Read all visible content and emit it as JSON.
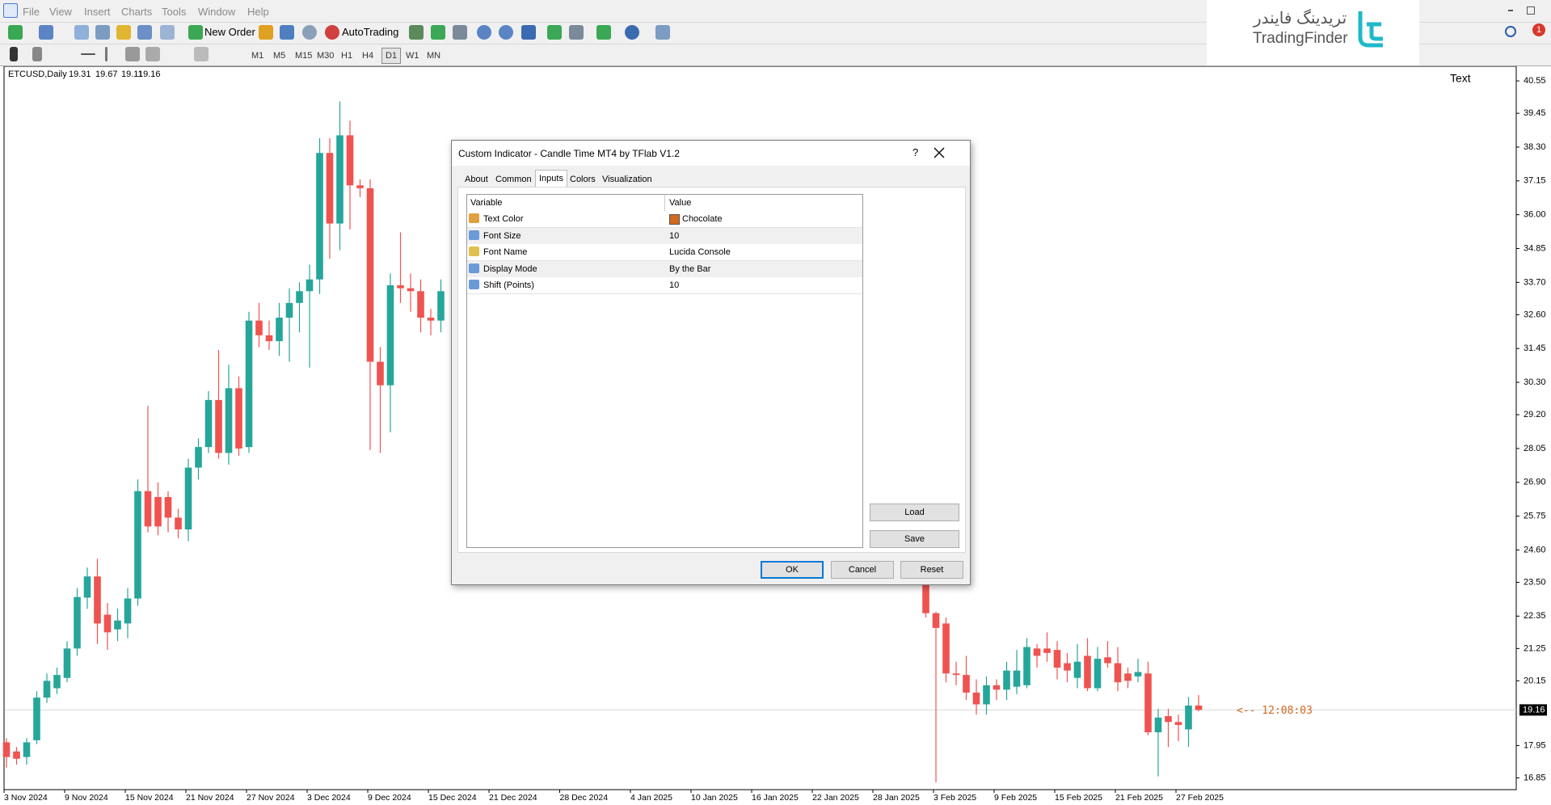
{
  "menu": [
    "File",
    "View",
    "Insert",
    "Charts",
    "Tools",
    "Window",
    "Help"
  ],
  "toolbar": {
    "new_order": "New Order",
    "autotrading": "AutoTrading",
    "timeframes": [
      "M1",
      "M5",
      "M15",
      "M30",
      "H1",
      "H4",
      "D1",
      "W1",
      "MN"
    ],
    "active_timeframe": "D1"
  },
  "logo": {
    "persian": "تریدینگ فایندر",
    "latin": "TradingFinder"
  },
  "notification_count": 1,
  "chart_data": {
    "type": "candlestick",
    "symbol": "ETCUSD,Daily",
    "ohlc": [
      19.31,
      19.67,
      19.11,
      19.16
    ],
    "annotation": "Text",
    "time_label": "<-- 12:08:03",
    "time_label_color": "#d2691e",
    "current_price": 19.16,
    "up_color": "#26a69a",
    "down_color": "#ef5350",
    "x": [
      "3 Nov 2024",
      "4 Nov 2024",
      "5 Nov 2024",
      "6 Nov 2024",
      "7 Nov 2024",
      "8 Nov 2024",
      "9 Nov 2024",
      "10 Nov 2024",
      "11 Nov 2024",
      "12 Nov 2024",
      "13 Nov 2024",
      "14 Nov 2024",
      "15 Nov 2024",
      "16 Nov 2024",
      "17 Nov 2024",
      "18 Nov 2024",
      "19 Nov 2024",
      "20 Nov 2024",
      "21 Nov 2024",
      "22 Nov 2024",
      "23 Nov 2024",
      "24 Nov 2024",
      "25 Nov 2024",
      "26 Nov 2024",
      "27 Nov 2024",
      "28 Nov 2024",
      "29 Nov 2024",
      "30 Nov 2024",
      "1 Dec 2024",
      "2 Dec 2024",
      "3 Dec 2024",
      "4 Dec 2024",
      "5 Dec 2024",
      "6 Dec 2024",
      "7 Dec 2024",
      "8 Dec 2024",
      "9 Dec 2024",
      "10 Dec 2024",
      "11 Dec 2024",
      "12 Dec 2024",
      "13 Dec 2024",
      "14 Dec 2024",
      "15 Dec 2024",
      "16 Dec 2024",
      "2 Feb 2025",
      "3 Feb 2025",
      "4 Feb 2025",
      "5 Feb 2025",
      "6 Feb 2025",
      "7 Feb 2025",
      "8 Feb 2025",
      "9 Feb 2025",
      "10 Feb 2025",
      "11 Feb 2025",
      "12 Feb 2025",
      "13 Feb 2025",
      "14 Feb 2025",
      "15 Feb 2025",
      "16 Feb 2025",
      "17 Feb 2025",
      "18 Feb 2025",
      "19 Feb 2025",
      "20 Feb 2025",
      "21 Feb 2025",
      "22 Feb 2025",
      "23 Feb 2025",
      "24 Feb 2025",
      "25 Feb 2025",
      "26 Feb 2025",
      "27 Feb 2025",
      "28 Feb 2025",
      "1 Mar 2025"
    ],
    "open": [
      18.06,
      17.75,
      17.56,
      18.13,
      19.58,
      19.9,
      20.25,
      21.25,
      22.98,
      23.7,
      22.4,
      21.9,
      22.1,
      22.95,
      26.6,
      26.4,
      26.4,
      25.7,
      25.3,
      27.4,
      28.1,
      29.7,
      27.9,
      30.1,
      28.1,
      32.4,
      31.9,
      31.7,
      32.5,
      33.0,
      33.4,
      33.8,
      38.1,
      35.7,
      38.7,
      37.0,
      36.9,
      31.0,
      30.2,
      33.6,
      33.5,
      33.4,
      32.5,
      32.4,
      23.45,
      22.45,
      22.1,
      20.4,
      20.35,
      19.75,
      19.35,
      20.0,
      19.85,
      19.95,
      20.0,
      21.25,
      21.25,
      21.2,
      20.75,
      20.25,
      21.0,
      19.9,
      20.95,
      20.75,
      20.4,
      20.3,
      20.4,
      18.4,
      18.95,
      18.75,
      18.5,
      19.31
    ],
    "high": [
      18.2,
      17.9,
      18.2,
      19.8,
      20.4,
      20.6,
      21.5,
      23.3,
      24.0,
      24.3,
      22.8,
      22.6,
      23.3,
      27.0,
      29.5,
      26.9,
      26.6,
      26.0,
      27.7,
      28.4,
      30.0,
      31.4,
      30.9,
      30.5,
      32.7,
      33.0,
      32.4,
      33.0,
      33.5,
      33.7,
      34.3,
      38.6,
      38.6,
      39.85,
      39.2,
      37.2,
      37.2,
      31.5,
      34.0,
      35.4,
      34.0,
      33.8,
      32.8,
      33.8,
      23.5,
      22.5,
      22.3,
      20.8,
      21.0,
      20.2,
      20.3,
      20.2,
      20.8,
      21.2,
      21.6,
      21.4,
      21.8,
      21.5,
      21.1,
      21.4,
      21.6,
      21.3,
      21.5,
      21.3,
      20.6,
      20.9,
      20.8,
      19.2,
      19.2,
      19.0,
      19.6,
      19.67
    ],
    "low": [
      17.2,
      17.3,
      17.3,
      18.0,
      19.4,
      19.7,
      20.1,
      21.0,
      22.6,
      21.4,
      21.2,
      21.5,
      21.6,
      22.7,
      25.2,
      25.1,
      25.2,
      25.0,
      24.9,
      27.0,
      27.9,
      27.7,
      27.5,
      27.8,
      27.9,
      31.5,
      31.4,
      31.2,
      31.0,
      32.0,
      30.8,
      33.3,
      34.5,
      34.8,
      35.5,
      36.6,
      28.0,
      27.9,
      28.6,
      33.0,
      32.7,
      32.0,
      31.9,
      32.0,
      22.3,
      16.7,
      20.1,
      20.0,
      19.5,
      19.0,
      19.0,
      19.5,
      19.5,
      19.7,
      19.9,
      20.6,
      20.8,
      20.2,
      20.1,
      19.9,
      19.8,
      19.8,
      20.6,
      19.8,
      19.9,
      20.1,
      18.3,
      16.9,
      17.9,
      18.1,
      17.9,
      19.11
    ],
    "close": [
      17.56,
      17.5,
      18.06,
      19.58,
      20.15,
      20.35,
      21.25,
      23.0,
      23.7,
      22.1,
      21.8,
      22.2,
      22.95,
      26.6,
      25.4,
      25.4,
      25.7,
      25.3,
      27.4,
      28.1,
      29.7,
      27.9,
      30.1,
      28.05,
      32.4,
      31.9,
      31.7,
      32.5,
      33.0,
      33.4,
      33.8,
      38.1,
      35.7,
      38.7,
      37.0,
      36.9,
      31.0,
      30.2,
      33.6,
      33.5,
      33.4,
      32.5,
      32.4,
      33.4,
      22.45,
      21.95,
      20.4,
      20.35,
      19.75,
      19.35,
      20.0,
      19.85,
      20.5,
      20.5,
      21.3,
      21.0,
      21.1,
      20.6,
      20.5,
      20.8,
      19.9,
      20.9,
      20.75,
      20.1,
      20.15,
      20.45,
      18.4,
      18.9,
      18.75,
      18.65,
      19.31,
      19.16
    ],
    "ylim": [
      16.45,
      41.02
    ],
    "yticks": [
      40.55,
      39.45,
      {
        "value": 38.3,
        "label": "38.30"
      },
      37.15,
      {
        "value": 36,
        "label": "36.00"
      },
      34.85,
      {
        "value": 33.7,
        "label": "33.70"
      },
      {
        "value": 32.6,
        "label": "32.60"
      },
      31.45,
      {
        "value": 30.3,
        "label": "30.30"
      },
      {
        "value": 29.2,
        "label": "29.20"
      },
      28.05,
      {
        "value": 26.9,
        "label": "26.90"
      },
      25.75,
      {
        "value": 24.6,
        "label": "24.60"
      },
      {
        "value": 23.5,
        "label": "23.50"
      },
      22.35,
      21.25,
      20.15,
      17.95,
      16.85
    ],
    "xticks": [
      "3 Nov 2024",
      "9 Nov 2024",
      "15 Nov 2024",
      "21 Nov 2024",
      "27 Nov 2024",
      "3 Dec 2024",
      "9 Dec 2024",
      "15 Dec 2024",
      "21 Dec 2024",
      "28 Dec 2024",
      "4 Jan 2025",
      "10 Jan 2025",
      "16 Jan 2025",
      "22 Jan 2025",
      "28 Jan 2025",
      "3 Feb 2025",
      "9 Feb 2025",
      "15 Feb 2025",
      "21 Feb 2025",
      "27 Feb 2025"
    ]
  },
  "dialog": {
    "title": "Custom Indicator - Candle Time MT4 by TFlab V1.2",
    "help": "?",
    "tabs": [
      "About",
      "Common",
      "Inputs",
      "Colors",
      "Visualization"
    ],
    "active_tab": "Inputs",
    "table": {
      "columns": [
        "Variable",
        "Value"
      ],
      "rows": [
        [
          "Text Color",
          "Chocolate"
        ],
        [
          "Font Size",
          10
        ],
        [
          "Font Name",
          "Lucida Console"
        ],
        [
          "Display Mode",
          "By the Bar"
        ],
        [
          "Shift (Points)",
          10
        ]
      ]
    },
    "swatch_color": "#d2691e",
    "side_buttons": [
      "Load",
      "Save"
    ],
    "bottom_buttons": [
      "OK",
      "Cancel",
      "Reset"
    ]
  }
}
